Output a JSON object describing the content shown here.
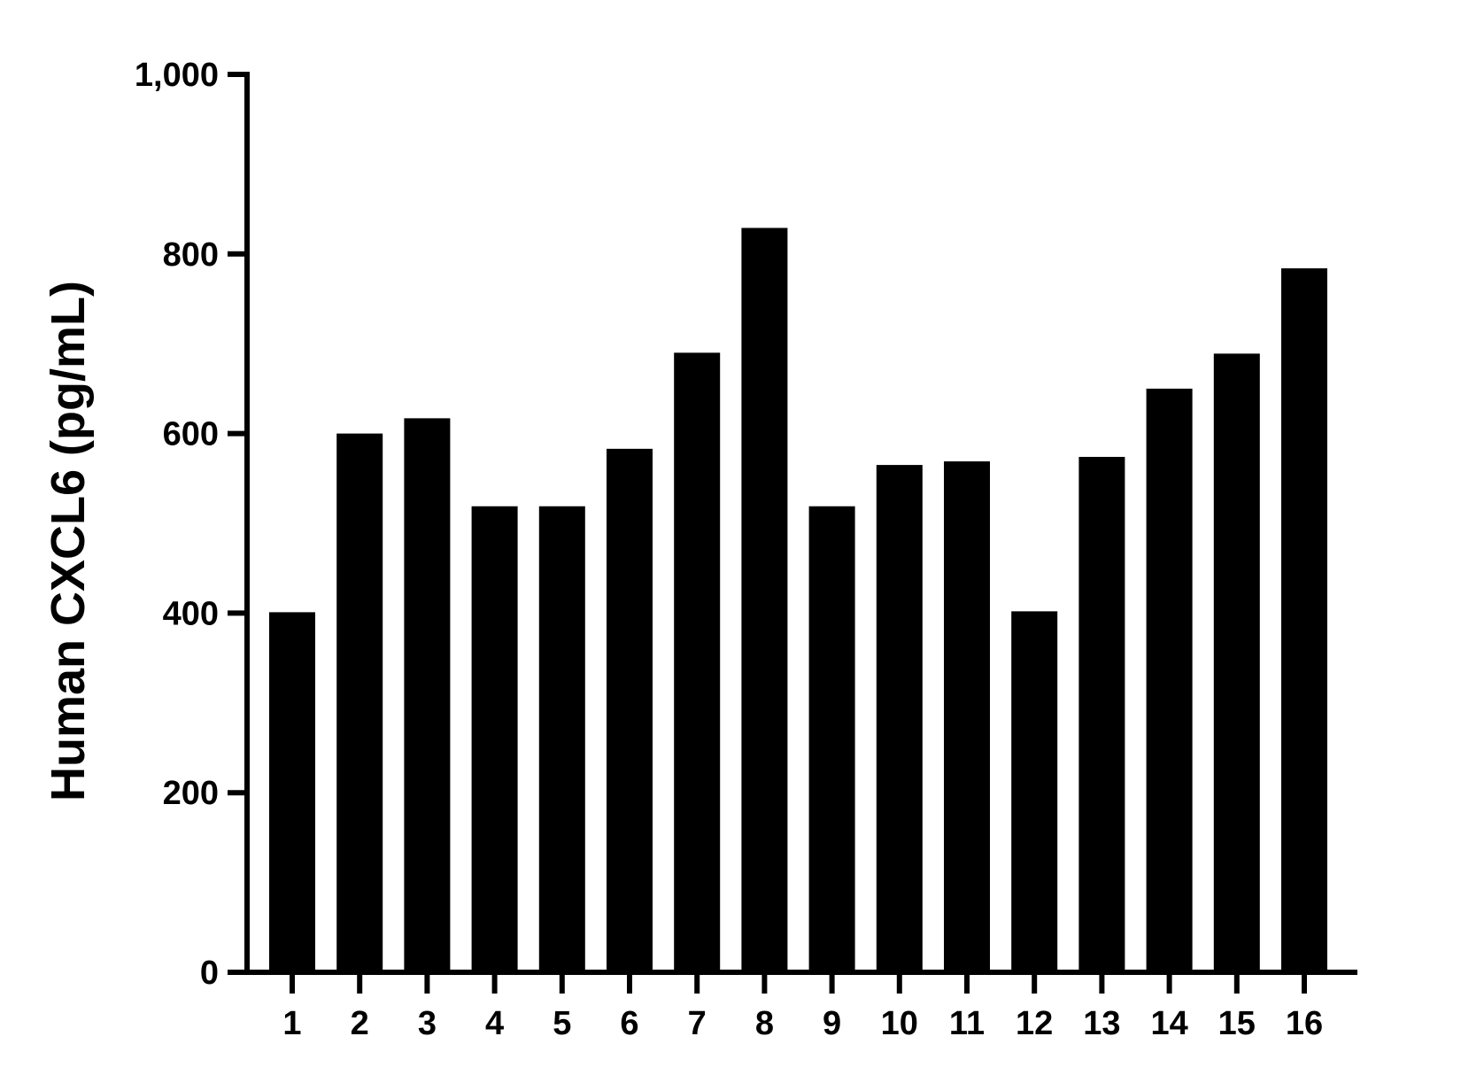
{
  "chart_data": {
    "type": "bar",
    "title": "",
    "xlabel": "",
    "ylabel": "Human CXCL6 (pg/mL)",
    "categories": [
      "1",
      "2",
      "3",
      "4",
      "5",
      "6",
      "7",
      "8",
      "9",
      "10",
      "11",
      "12",
      "13",
      "14",
      "15",
      "16"
    ],
    "values": [
      401,
      600,
      617,
      519,
      519,
      583,
      690,
      829,
      519,
      565,
      569,
      402,
      574,
      650,
      689,
      784
    ],
    "ylim": [
      0,
      1000
    ],
    "yticks": [
      0,
      200,
      400,
      600,
      800,
      1000
    ],
    "ytick_labels": [
      "0",
      "200",
      "400",
      "600",
      "800",
      "1,000"
    ],
    "grid": false,
    "legend": "none",
    "bar_color": "#000000"
  }
}
